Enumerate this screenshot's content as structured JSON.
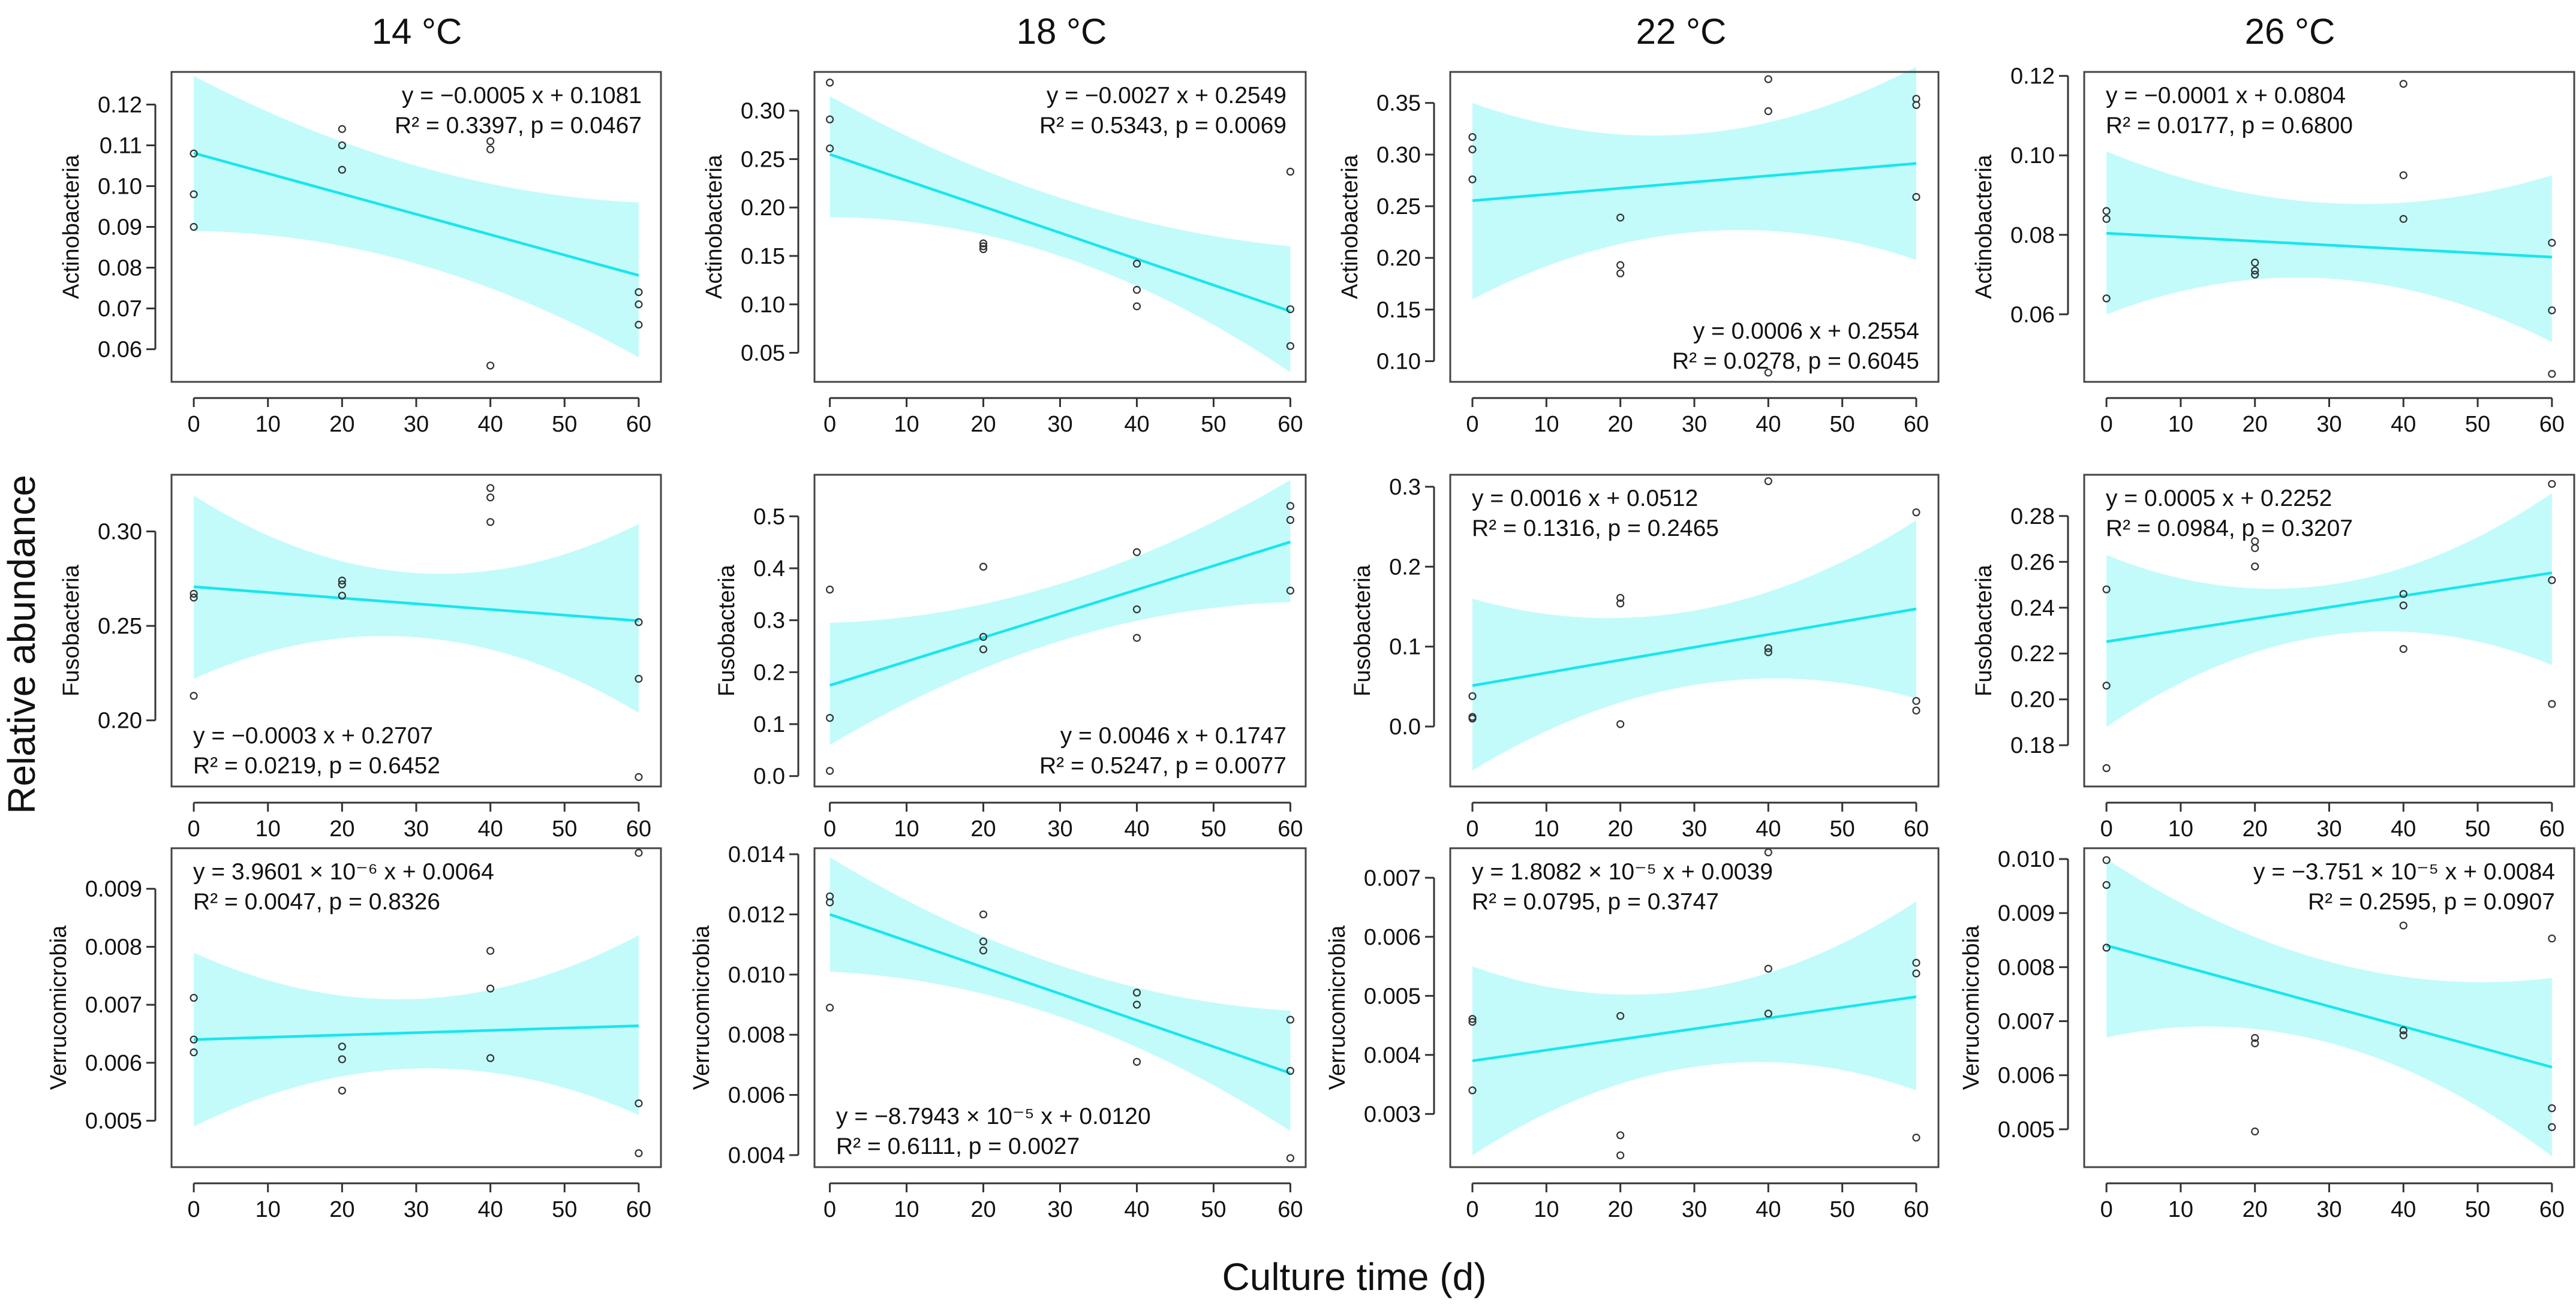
{
  "figure": {
    "y_title": "Relative abundance",
    "x_title": "Culture time (d)",
    "columns": [
      "14 °C",
      "18 °C",
      "22 °C",
      "26 °C"
    ]
  },
  "colors": {
    "fit_line": "#19e6ec",
    "confidence_band": "#c3fbfb",
    "points": "#333333"
  },
  "chart_data": [
    {
      "type": "scatter",
      "row": 0,
      "col": 0,
      "ylabel": "Actinobacteria",
      "xlim": [
        -3,
        63
      ],
      "ylim": [
        0.052,
        0.128
      ],
      "xticks": [
        0,
        10,
        20,
        30,
        40,
        50,
        60
      ],
      "yticks": [
        0.06,
        0.07,
        0.08,
        0.09,
        0.1,
        0.11,
        0.12
      ],
      "ytick_labels": [
        "0.06",
        "0.07",
        "0.08",
        "0.09",
        "0.10",
        "0.11",
        "0.12"
      ],
      "points": [
        [
          0,
          0.108
        ],
        [
          0,
          0.098
        ],
        [
          0,
          0.09
        ],
        [
          20,
          0.114
        ],
        [
          20,
          0.11
        ],
        [
          20,
          0.104
        ],
        [
          40,
          0.111
        ],
        [
          40,
          0.109
        ],
        [
          40,
          0.056
        ],
        [
          60,
          0.074
        ],
        [
          60,
          0.071
        ],
        [
          60,
          0.066
        ]
      ],
      "fit": {
        "slope": -0.0005,
        "intercept": 0.1081
      },
      "band": {
        "x": [
          0,
          30,
          60
        ],
        "lower": [
          0.089,
          0.081,
          0.058
        ],
        "upper": [
          0.127,
          0.105,
          0.096
        ]
      },
      "equation": [
        "y = −0.0005 x + 0.1081",
        "R² = 0.3397, p = 0.0467"
      ],
      "eq_pos": "top-right"
    },
    {
      "type": "scatter",
      "row": 0,
      "col": 1,
      "ylabel": "Actinobacteria",
      "xlim": [
        -2,
        62
      ],
      "ylim": [
        0.02,
        0.34
      ],
      "xticks": [
        0,
        10,
        20,
        30,
        40,
        50,
        60
      ],
      "yticks": [
        0.05,
        0.1,
        0.15,
        0.2,
        0.25,
        0.3
      ],
      "ytick_labels": [
        "0.05",
        "0.10",
        "0.15",
        "0.20",
        "0.25",
        "0.30"
      ],
      "points": [
        [
          0,
          0.329
        ],
        [
          0,
          0.291
        ],
        [
          0,
          0.261
        ],
        [
          20,
          0.163
        ],
        [
          20,
          0.16
        ],
        [
          20,
          0.157
        ],
        [
          40,
          0.142
        ],
        [
          40,
          0.115
        ],
        [
          40,
          0.098
        ],
        [
          60,
          0.237
        ],
        [
          60,
          0.095
        ],
        [
          60,
          0.057
        ]
      ],
      "fit": {
        "slope": -0.0027,
        "intercept": 0.2549
      },
      "band": {
        "x": [
          0,
          30,
          60
        ],
        "lower": [
          0.19,
          0.15,
          0.03
        ],
        "upper": [
          0.315,
          0.21,
          0.16
        ]
      },
      "equation": [
        "y = −0.0027 x + 0.2549",
        "R² = 0.5343, p = 0.0069"
      ],
      "eq_pos": "top-right"
    },
    {
      "type": "scatter",
      "row": 0,
      "col": 2,
      "ylabel": "Actinobacteria",
      "xlim": [
        -3,
        63
      ],
      "ylim": [
        0.08,
        0.38
      ],
      "xticks": [
        0,
        10,
        20,
        30,
        40,
        50,
        60
      ],
      "yticks": [
        0.1,
        0.15,
        0.2,
        0.25,
        0.3,
        0.35
      ],
      "ytick_labels": [
        "0.10",
        "0.15",
        "0.20",
        "0.25",
        "0.30",
        "0.35"
      ],
      "points": [
        [
          0,
          0.317
        ],
        [
          0,
          0.305
        ],
        [
          0,
          0.276
        ],
        [
          20,
          0.239
        ],
        [
          20,
          0.193
        ],
        [
          20,
          0.185
        ],
        [
          40,
          0.373
        ],
        [
          40,
          0.342
        ],
        [
          40,
          0.089
        ],
        [
          60,
          0.354
        ],
        [
          60,
          0.348
        ],
        [
          60,
          0.259
        ]
      ],
      "fit": {
        "slope": 0.0006,
        "intercept": 0.2554
      },
      "band": {
        "x": [
          0,
          30,
          60
        ],
        "lower": [
          0.16,
          0.225,
          0.198
        ],
        "upper": [
          0.35,
          0.32,
          0.385
        ]
      },
      "equation": [
        "y = 0.0006 x + 0.2554",
        "R² = 0.0278, p = 0.6045"
      ],
      "eq_pos": "bottom-right"
    },
    {
      "type": "scatter",
      "row": 0,
      "col": 3,
      "ylabel": "Actinobacteria",
      "xlim": [
        -3,
        63
      ],
      "ylim": [
        0.043,
        0.121
      ],
      "xticks": [
        0,
        10,
        20,
        30,
        40,
        50,
        60
      ],
      "yticks": [
        0.06,
        0.08,
        0.1,
        0.12
      ],
      "ytick_labels": [
        "0.06",
        "0.08",
        "0.10",
        "0.12"
      ],
      "points": [
        [
          0,
          0.086
        ],
        [
          0,
          0.084
        ],
        [
          0,
          0.064
        ],
        [
          20,
          0.073
        ],
        [
          20,
          0.071
        ],
        [
          20,
          0.07
        ],
        [
          40,
          0.118
        ],
        [
          40,
          0.095
        ],
        [
          40,
          0.084
        ],
        [
          60,
          0.078
        ],
        [
          60,
          0.061
        ],
        [
          60,
          0.045
        ]
      ],
      "fit": {
        "slope": -0.0001,
        "intercept": 0.0804
      },
      "band": {
        "x": [
          0,
          30,
          60
        ],
        "lower": [
          0.06,
          0.069,
          0.053
        ],
        "upper": [
          0.101,
          0.088,
          0.095
        ]
      },
      "equation": [
        "y = −0.0001 x + 0.0804",
        "R² = 0.0177, p = 0.6800"
      ],
      "eq_pos": "top-left"
    },
    {
      "type": "scatter",
      "row": 1,
      "col": 0,
      "ylabel": "Fusobacteria",
      "xlim": [
        -3,
        63
      ],
      "ylim": [
        0.165,
        0.33
      ],
      "xticks": [
        0,
        10,
        20,
        30,
        40,
        50,
        60
      ],
      "yticks": [
        0.2,
        0.25,
        0.3
      ],
      "ytick_labels": [
        "0.20",
        "0.25",
        "0.30"
      ],
      "points": [
        [
          0,
          0.267
        ],
        [
          0,
          0.265
        ],
        [
          0,
          0.213
        ],
        [
          20,
          0.274
        ],
        [
          20,
          0.272
        ],
        [
          20,
          0.266
        ],
        [
          40,
          0.323
        ],
        [
          40,
          0.318
        ],
        [
          40,
          0.305
        ],
        [
          60,
          0.252
        ],
        [
          60,
          0.222
        ],
        [
          60,
          0.17
        ]
      ],
      "fit": {
        "slope": -0.0003,
        "intercept": 0.2707
      },
      "band": {
        "x": [
          0,
          30,
          60
        ],
        "lower": [
          0.222,
          0.244,
          0.204
        ],
        "upper": [
          0.319,
          0.278,
          0.304
        ]
      },
      "equation": [
        "y = −0.0003 x + 0.2707",
        "R² = 0.0219, p = 0.6452"
      ],
      "eq_pos": "bottom-left"
    },
    {
      "type": "scatter",
      "row": 1,
      "col": 1,
      "ylabel": "Fusobacteria",
      "xlim": [
        -2,
        62
      ],
      "ylim": [
        -0.02,
        0.58
      ],
      "xticks": [
        0,
        10,
        20,
        30,
        40,
        50,
        60
      ],
      "yticks": [
        0.0,
        0.1,
        0.2,
        0.3,
        0.4,
        0.5
      ],
      "ytick_labels": [
        "0.0",
        "0.1",
        "0.2",
        "0.3",
        "0.4",
        "0.5"
      ],
      "points": [
        [
          0,
          0.359
        ],
        [
          0,
          0.112
        ],
        [
          0,
          0.01
        ],
        [
          20,
          0.403
        ],
        [
          20,
          0.268
        ],
        [
          20,
          0.244
        ],
        [
          40,
          0.431
        ],
        [
          40,
          0.321
        ],
        [
          40,
          0.266
        ],
        [
          60,
          0.52
        ],
        [
          60,
          0.493
        ],
        [
          60,
          0.357
        ]
      ],
      "fit": {
        "slope": 0.0046,
        "intercept": 0.1747
      },
      "band": {
        "x": [
          0,
          30,
          60
        ],
        "lower": [
          0.06,
          0.26,
          0.335
        ],
        "upper": [
          0.295,
          0.37,
          0.57
        ]
      },
      "equation": [
        "y = 0.0046 x + 0.1747",
        "R² = 0.5247, p = 0.0077"
      ],
      "eq_pos": "bottom-right"
    },
    {
      "type": "scatter",
      "row": 1,
      "col": 2,
      "ylabel": "Fusobacteria",
      "xlim": [
        -3,
        63
      ],
      "ylim": [
        -0.075,
        0.315
      ],
      "xticks": [
        0,
        10,
        20,
        30,
        40,
        50,
        60
      ],
      "yticks": [
        0.0,
        0.1,
        0.2,
        0.3
      ],
      "ytick_labels": [
        "0.0",
        "0.1",
        "0.2",
        "0.3"
      ],
      "points": [
        [
          0,
          0.038
        ],
        [
          0,
          0.012
        ],
        [
          0,
          0.01
        ],
        [
          20,
          0.161
        ],
        [
          20,
          0.154
        ],
        [
          20,
          0.003
        ],
        [
          40,
          0.307
        ],
        [
          40,
          0.098
        ],
        [
          40,
          0.093
        ],
        [
          60,
          0.268
        ],
        [
          60,
          0.032
        ],
        [
          60,
          0.02
        ]
      ],
      "fit": {
        "slope": 0.0016,
        "intercept": 0.0512
      },
      "band": {
        "x": [
          0,
          30,
          60
        ],
        "lower": [
          -0.055,
          0.052,
          0.035
        ],
        "upper": [
          0.16,
          0.145,
          0.258
        ]
      },
      "equation": [
        "y = 0.0016 x + 0.0512",
        "R² = 0.1316, p = 0.2465"
      ],
      "eq_pos": "top-left"
    },
    {
      "type": "scatter",
      "row": 1,
      "col": 3,
      "ylabel": "Fusobacteria",
      "xlim": [
        -3,
        63
      ],
      "ylim": [
        0.162,
        0.298
      ],
      "xticks": [
        0,
        10,
        20,
        30,
        40,
        50,
        60
      ],
      "yticks": [
        0.18,
        0.2,
        0.22,
        0.24,
        0.26,
        0.28
      ],
      "ytick_labels": [
        "0.18",
        "0.20",
        "0.22",
        "0.24",
        "0.26",
        "0.28"
      ],
      "points": [
        [
          0,
          0.248
        ],
        [
          0,
          0.206
        ],
        [
          0,
          0.17
        ],
        [
          20,
          0.269
        ],
        [
          20,
          0.266
        ],
        [
          20,
          0.258
        ],
        [
          40,
          0.246
        ],
        [
          40,
          0.241
        ],
        [
          40,
          0.222
        ],
        [
          60,
          0.294
        ],
        [
          60,
          0.252
        ],
        [
          60,
          0.198
        ]
      ],
      "fit": {
        "slope": 0.0005,
        "intercept": 0.2252
      },
      "band": {
        "x": [
          0,
          30,
          60
        ],
        "lower": [
          0.188,
          0.228,
          0.215
        ],
        "upper": [
          0.263,
          0.25,
          0.29
        ]
      },
      "equation": [
        "y = 0.0005 x + 0.2252",
        "R² = 0.0984, p = 0.3207"
      ],
      "eq_pos": "top-left"
    },
    {
      "type": "scatter",
      "row": 2,
      "col": 0,
      "ylabel": "Verrucomicrobia",
      "xlim": [
        -3,
        63
      ],
      "ylim": [
        0.0042,
        0.0097
      ],
      "xticks": [
        0,
        10,
        20,
        30,
        40,
        50,
        60
      ],
      "yticks": [
        0.005,
        0.006,
        0.007,
        0.008,
        0.009
      ],
      "ytick_labels": [
        "0.005",
        "0.006",
        "0.007",
        "0.008",
        "0.009"
      ],
      "points": [
        [
          0,
          0.00712
        ],
        [
          0,
          0.0064
        ],
        [
          0,
          0.00618
        ],
        [
          20,
          0.00628
        ],
        [
          20,
          0.00606
        ],
        [
          20,
          0.00552
        ],
        [
          40,
          0.00793
        ],
        [
          40,
          0.00728
        ],
        [
          40,
          0.00608
        ],
        [
          60,
          0.00962
        ],
        [
          60,
          0.0053
        ],
        [
          60,
          0.00444
        ]
      ],
      "fit": {
        "slope": 3.9601e-06,
        "intercept": 0.0064
      },
      "band": {
        "x": [
          0,
          30,
          60
        ],
        "lower": [
          0.0049,
          0.0059,
          0.0051
        ],
        "upper": [
          0.0079,
          0.0071,
          0.0082
        ]
      },
      "equation": [
        "y = 3.9601 × 10⁻⁶ x + 0.0064",
        "R² = 0.0047, p = 0.8326"
      ],
      "eq_pos": "top-left"
    },
    {
      "type": "scatter",
      "row": 2,
      "col": 1,
      "ylabel": "Verrucomicrobia",
      "xlim": [
        -2,
        62
      ],
      "ylim": [
        0.0036,
        0.0142
      ],
      "xticks": [
        0,
        10,
        20,
        30,
        40,
        50,
        60
      ],
      "yticks": [
        0.004,
        0.006,
        0.008,
        0.01,
        0.012,
        0.014
      ],
      "ytick_labels": [
        "0.004",
        "0.006",
        "0.008",
        "0.010",
        "0.012",
        "0.014"
      ],
      "points": [
        [
          0,
          0.0126
        ],
        [
          0,
          0.0124
        ],
        [
          0,
          0.0089
        ],
        [
          20,
          0.012
        ],
        [
          20,
          0.0111
        ],
        [
          20,
          0.0108
        ],
        [
          40,
          0.0094
        ],
        [
          40,
          0.009
        ],
        [
          40,
          0.0071
        ],
        [
          60,
          0.0085
        ],
        [
          60,
          0.0068
        ],
        [
          60,
          0.0039
        ]
      ],
      "fit": {
        "slope": -8.7943e-05,
        "intercept": 0.012
      },
      "band": {
        "x": [
          0,
          30,
          60
        ],
        "lower": [
          0.0101,
          0.0086,
          0.0048
        ],
        "upper": [
          0.0139,
          0.0103,
          0.0088
        ]
      },
      "equation": [
        "y = −8.7943 × 10⁻⁵ x + 0.0120",
        "R² = 0.6111, p = 0.0027"
      ],
      "eq_pos": "bottom-left"
    },
    {
      "type": "scatter",
      "row": 2,
      "col": 2,
      "ylabel": "Verrucomicrobia",
      "xlim": [
        -3,
        63
      ],
      "ylim": [
        0.0021,
        0.0075
      ],
      "xticks": [
        0,
        10,
        20,
        30,
        40,
        50,
        60
      ],
      "yticks": [
        0.003,
        0.004,
        0.005,
        0.006,
        0.007
      ],
      "ytick_labels": [
        "0.003",
        "0.004",
        "0.005",
        "0.006",
        "0.007"
      ],
      "points": [
        [
          0,
          0.00461
        ],
        [
          0,
          0.00456
        ],
        [
          0,
          0.0034
        ],
        [
          20,
          0.00466
        ],
        [
          20,
          0.00264
        ],
        [
          20,
          0.0023
        ],
        [
          40,
          0.00743
        ],
        [
          40,
          0.00546
        ],
        [
          40,
          0.0047
        ],
        [
          60,
          0.00556
        ],
        [
          60,
          0.00538
        ],
        [
          60,
          0.0026
        ]
      ],
      "fit": {
        "slope": 1.8082e-05,
        "intercept": 0.0039
      },
      "band": {
        "x": [
          0,
          30,
          60
        ],
        "lower": [
          0.0023,
          0.0038,
          0.0034
        ],
        "upper": [
          0.0055,
          0.0051,
          0.0066
        ]
      },
      "equation": [
        "y = 1.8082 × 10⁻⁵ x + 0.0039",
        "R² = 0.0795, p = 0.3747"
      ],
      "eq_pos": "top-left"
    },
    {
      "type": "scatter",
      "row": 2,
      "col": 3,
      "ylabel": "Verrucomicrobia",
      "xlim": [
        -3,
        63
      ],
      "ylim": [
        0.0043,
        0.0102
      ],
      "xticks": [
        0,
        10,
        20,
        30,
        40,
        50,
        60
      ],
      "yticks": [
        0.005,
        0.006,
        0.007,
        0.008,
        0.009,
        0.01
      ],
      "ytick_labels": [
        "0.005",
        "0.006",
        "0.007",
        "0.008",
        "0.009",
        "0.010"
      ],
      "points": [
        [
          0,
          0.00998
        ],
        [
          0,
          0.00952
        ],
        [
          0,
          0.00836
        ],
        [
          20,
          0.00669
        ],
        [
          20,
          0.00659
        ],
        [
          20,
          0.00496
        ],
        [
          40,
          0.00877
        ],
        [
          40,
          0.00683
        ],
        [
          40,
          0.00674
        ],
        [
          60,
          0.00853
        ],
        [
          60,
          0.00539
        ],
        [
          60,
          0.00504
        ]
      ],
      "fit": {
        "slope": -3.751e-05,
        "intercept": 0.0084
      },
      "band": {
        "x": [
          0,
          30,
          60
        ],
        "lower": [
          0.0067,
          0.0066,
          0.0045
        ],
        "upper": [
          0.01,
          0.0081,
          0.0078
        ]
      },
      "equation": [
        "y = −3.751 × 10⁻⁵ x + 0.0084",
        "R² = 0.2595, p = 0.0907"
      ],
      "eq_pos": "top-right"
    }
  ]
}
